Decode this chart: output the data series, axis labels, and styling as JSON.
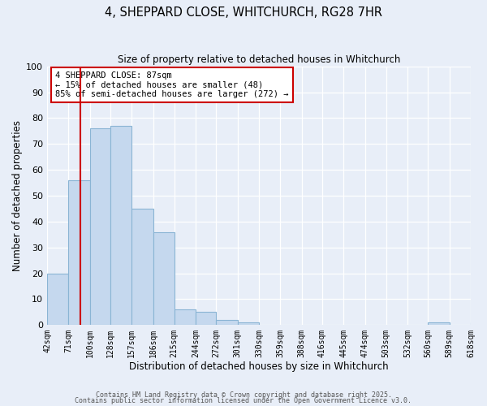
{
  "title": "4, SHEPPARD CLOSE, WHITCHURCH, RG28 7HR",
  "subtitle": "Size of property relative to detached houses in Whitchurch",
  "xlabel": "Distribution of detached houses by size in Whitchurch",
  "ylabel": "Number of detached properties",
  "footnote1": "Contains HM Land Registry data © Crown copyright and database right 2025.",
  "footnote2": "Contains public sector information licensed under the Open Government Licence v3.0.",
  "bin_edges": [
    42,
    71,
    100,
    128,
    157,
    186,
    215,
    244,
    272,
    301,
    330,
    359,
    388,
    416,
    445,
    474,
    503,
    532,
    560,
    589,
    618
  ],
  "bin_labels": [
    "42sqm",
    "71sqm",
    "100sqm",
    "128sqm",
    "157sqm",
    "186sqm",
    "215sqm",
    "244sqm",
    "272sqm",
    "301sqm",
    "330sqm",
    "359sqm",
    "388sqm",
    "416sqm",
    "445sqm",
    "474sqm",
    "503sqm",
    "532sqm",
    "560sqm",
    "589sqm",
    "618sqm"
  ],
  "counts": [
    20,
    56,
    76,
    77,
    45,
    36,
    6,
    5,
    2,
    1,
    0,
    0,
    0,
    0,
    0,
    0,
    0,
    0,
    1,
    0,
    1
  ],
  "bar_color": "#c5d8ee",
  "bar_edge_color": "#8ab4d4",
  "marker_x": 87,
  "vline_color": "#cc0000",
  "annotation_title": "4 SHEPPARD CLOSE: 87sqm",
  "annotation_line2": "← 15% of detached houses are smaller (48)",
  "annotation_line3": "85% of semi-detached houses are larger (272) →",
  "annotation_box_color": "#ffffff",
  "annotation_box_edge": "#cc0000",
  "ylim": [
    0,
    100
  ],
  "xlim": [
    42,
    618
  ],
  "background_color": "#e8eef8",
  "grid_color": "#ffffff",
  "yticks": [
    0,
    10,
    20,
    30,
    40,
    50,
    60,
    70,
    80,
    90,
    100
  ]
}
